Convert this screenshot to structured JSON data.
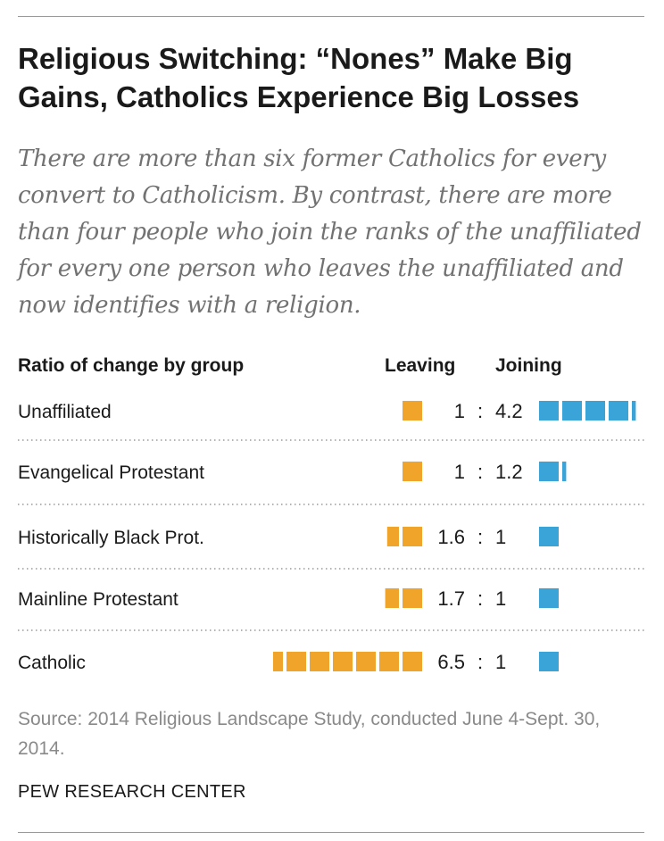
{
  "title": "Religious Switching: “Nones” Make Big Gains, Catholics Experience Big Losses",
  "subtitle": "There are more than six former Catholics for every convert to Catholicism. By contrast, there are more than four people who join the ranks of the unaffiliated for every one person who leaves the unaffiliated and now identifies with a religion.",
  "headers": {
    "group": "Ratio of change by group",
    "leaving": "Leaving",
    "joining": "Joining"
  },
  "chart_data": {
    "type": "bar",
    "title": "Ratio of change by group",
    "categories": [
      "Unaffiliated",
      "Evangelical Protestant",
      "Historically Black Prot.",
      "Mainline Protestant",
      "Catholic"
    ],
    "series": [
      {
        "name": "Leaving",
        "values": [
          1,
          1,
          1.6,
          1.7,
          6.5
        ]
      },
      {
        "name": "Joining",
        "values": [
          4.2,
          1.2,
          1,
          1,
          1
        ]
      }
    ],
    "labels": [
      {
        "leaving": "1",
        "joining": "4.2"
      },
      {
        "leaving": "1",
        "joining": "1.2"
      },
      {
        "leaving": "1.6",
        "joining": "1"
      },
      {
        "leaving": "1.7",
        "joining": "1"
      },
      {
        "leaving": "6.5",
        "joining": "1"
      }
    ],
    "separator": ":",
    "colors": {
      "leaving": "#f0a52a",
      "joining": "#3aa3d8"
    }
  },
  "source": "Source: 2014 Religious Landscape Study, conducted June 4-Sept. 30, 2014.",
  "org": "PEW RESEARCH CENTER"
}
